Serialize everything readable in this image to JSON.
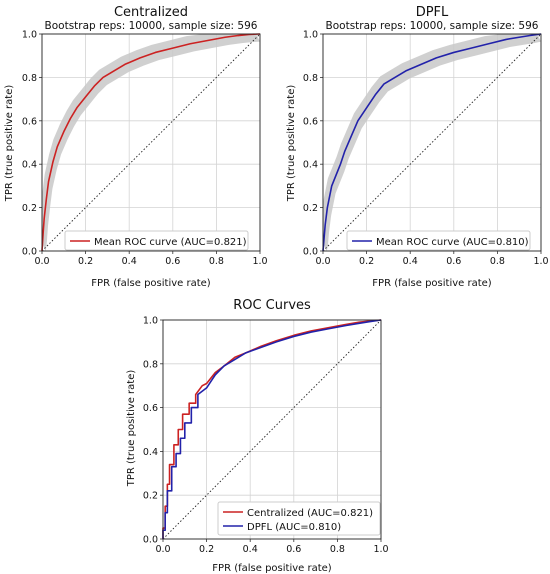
{
  "chart_data": [
    {
      "type": "line",
      "title": "Centralized",
      "subtitle": "Bootstrap reps: 10000, sample size: 596",
      "xlabel": "FPR (false positive rate)",
      "ylabel": "TPR (true positive rate)",
      "xlim": [
        0,
        1
      ],
      "ylim": [
        0,
        1
      ],
      "xticks": [
        "0.0",
        "0.2",
        "0.4",
        "0.6",
        "0.8",
        "1.0"
      ],
      "yticks": [
        "0.0",
        "0.2",
        "0.4",
        "0.6",
        "0.8",
        "1.0"
      ],
      "grid": true,
      "legend_position": "bottom-right",
      "diagonal": true,
      "series": [
        {
          "name": "Mean ROC curve (AUC=0.821)",
          "color": "#cc2222",
          "band_color": "#c8c8c8",
          "x": [
            0,
            0.005,
            0.01,
            0.02,
            0.03,
            0.05,
            0.07,
            0.1,
            0.13,
            0.16,
            0.2,
            0.24,
            0.28,
            0.33,
            0.38,
            0.45,
            0.52,
            0.6,
            0.68,
            0.76,
            0.84,
            0.9,
            0.95,
            1.0
          ],
          "y": [
            0,
            0.08,
            0.15,
            0.24,
            0.32,
            0.41,
            0.48,
            0.55,
            0.61,
            0.66,
            0.71,
            0.76,
            0.8,
            0.83,
            0.86,
            0.89,
            0.915,
            0.935,
            0.955,
            0.97,
            0.985,
            0.993,
            0.998,
            1.0
          ],
          "band": 0.035
        }
      ]
    },
    {
      "type": "line",
      "title": "DPFL",
      "subtitle": "Bootstrap reps: 10000, sample size: 596",
      "xlabel": "FPR (false positive rate)",
      "ylabel": "TPR (true positive rate)",
      "xlim": [
        0,
        1
      ],
      "ylim": [
        0,
        1
      ],
      "xticks": [
        "0.0",
        "0.2",
        "0.4",
        "0.6",
        "0.8",
        "1.0"
      ],
      "yticks": [
        "0.0",
        "0.2",
        "0.4",
        "0.6",
        "0.8",
        "1.0"
      ],
      "grid": true,
      "legend_position": "bottom-right",
      "diagonal": true,
      "series": [
        {
          "name": "Mean ROC curve (AUC=0.810)",
          "color": "#2222aa",
          "band_color": "#c8c8c8",
          "x": [
            0,
            0.005,
            0.01,
            0.02,
            0.04,
            0.06,
            0.08,
            0.1,
            0.13,
            0.16,
            0.2,
            0.24,
            0.28,
            0.33,
            0.38,
            0.45,
            0.52,
            0.6,
            0.68,
            0.76,
            0.84,
            0.9,
            0.95,
            1.0
          ],
          "y": [
            0,
            0.06,
            0.12,
            0.2,
            0.3,
            0.35,
            0.4,
            0.46,
            0.53,
            0.6,
            0.66,
            0.72,
            0.77,
            0.8,
            0.83,
            0.86,
            0.89,
            0.915,
            0.935,
            0.955,
            0.975,
            0.985,
            0.993,
            1.0
          ],
          "band": 0.035
        }
      ]
    },
    {
      "type": "line",
      "title": "ROC Curves",
      "xlabel": "FPR (false positive rate)",
      "ylabel": "TPR (true positive rate)",
      "xlim": [
        0,
        1
      ],
      "ylim": [
        0,
        1
      ],
      "xticks": [
        "0.0",
        "0.2",
        "0.4",
        "0.6",
        "0.8",
        "1.0"
      ],
      "yticks": [
        "0.0",
        "0.2",
        "0.4",
        "0.6",
        "0.8",
        "1.0"
      ],
      "grid": true,
      "legend_position": "bottom-right",
      "diagonal": true,
      "series": [
        {
          "name": "Centralized (AUC=0.821)",
          "color": "#cc2222",
          "x": [
            0,
            0.0,
            0.01,
            0.01,
            0.02,
            0.02,
            0.03,
            0.03,
            0.05,
            0.05,
            0.07,
            0.07,
            0.09,
            0.09,
            0.12,
            0.12,
            0.15,
            0.15,
            0.18,
            0.2,
            0.24,
            0.28,
            0.33,
            0.38,
            0.45,
            0.52,
            0.6,
            0.68,
            0.76,
            0.84,
            0.9,
            0.95,
            1.0
          ],
          "y": [
            0,
            0.05,
            0.05,
            0.15,
            0.15,
            0.25,
            0.25,
            0.34,
            0.34,
            0.43,
            0.43,
            0.5,
            0.5,
            0.57,
            0.57,
            0.62,
            0.62,
            0.66,
            0.7,
            0.71,
            0.76,
            0.79,
            0.83,
            0.85,
            0.88,
            0.905,
            0.93,
            0.95,
            0.965,
            0.98,
            0.99,
            0.995,
            1.0
          ]
        },
        {
          "name": "DPFL (AUC=0.810)",
          "color": "#2222aa",
          "x": [
            0,
            0.0,
            0.01,
            0.01,
            0.02,
            0.02,
            0.04,
            0.04,
            0.06,
            0.06,
            0.08,
            0.08,
            0.1,
            0.1,
            0.13,
            0.13,
            0.16,
            0.16,
            0.2,
            0.24,
            0.28,
            0.33,
            0.38,
            0.45,
            0.52,
            0.6,
            0.68,
            0.76,
            0.84,
            0.9,
            0.95,
            1.0
          ],
          "y": [
            0,
            0.04,
            0.04,
            0.12,
            0.12,
            0.22,
            0.22,
            0.33,
            0.33,
            0.39,
            0.39,
            0.46,
            0.46,
            0.53,
            0.53,
            0.6,
            0.6,
            0.66,
            0.69,
            0.75,
            0.79,
            0.82,
            0.85,
            0.875,
            0.9,
            0.925,
            0.945,
            0.96,
            0.975,
            0.985,
            0.993,
            1.0
          ]
        }
      ]
    }
  ]
}
